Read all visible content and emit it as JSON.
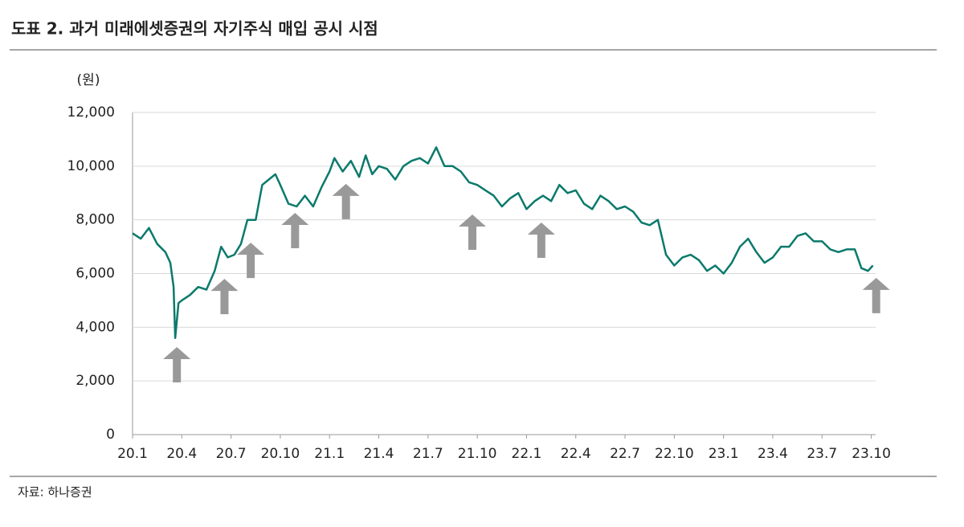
{
  "chart_data": {
    "type": "line",
    "title": "도표 2. 과거 미래에셋증권의 자기주식 매입 공시 시점",
    "y_unit": "(원)",
    "source": "자료: 하나증권",
    "color": "#0b7a6b",
    "arrow_color": "#999999",
    "grid": true,
    "x": [
      0,
      0.5,
      1,
      1.5,
      2,
      2.3,
      2.5,
      2.6,
      2.8,
      3,
      3.5,
      4,
      4.5,
      5,
      5.4,
      5.8,
      6.2,
      6.6,
      7,
      7.5,
      7.9,
      8.3,
      8.7,
      9,
      9.5,
      10,
      10.5,
      11,
      11.5,
      12,
      12.3,
      12.8,
      13.3,
      13.8,
      14.2,
      14.6,
      15,
      15.5,
      16,
      16.5,
      17,
      17.5,
      18,
      18.5,
      19,
      19.5,
      20,
      20.5,
      21,
      21.5,
      22,
      22.5,
      23,
      23.5,
      24,
      24.5,
      25,
      25.5,
      26,
      26.5,
      27,
      27.5,
      28,
      28.5,
      29,
      29.5,
      30,
      30.5,
      31,
      31.5,
      32,
      32.5,
      33,
      33.5,
      34,
      34.5,
      35,
      35.5,
      36,
      36.5,
      37,
      37.5,
      38,
      38.5,
      39,
      39.5,
      40,
      40.5,
      41,
      41.5,
      42,
      42.5,
      43,
      43.5,
      44,
      44.4,
      44.8,
      45.1
    ],
    "values": [
      7500,
      7300,
      7700,
      7100,
      6800,
      6400,
      5500,
      3600,
      4900,
      5000,
      5200,
      5500,
      5400,
      6100,
      7000,
      6600,
      6700,
      7100,
      8000,
      8000,
      9300,
      9500,
      9700,
      9300,
      8600,
      8500,
      8900,
      8500,
      9200,
      9800,
      10300,
      9800,
      10200,
      9600,
      10400,
      9700,
      10000,
      9900,
      9500,
      10000,
      10200,
      10300,
      10100,
      10700,
      10000,
      10000,
      9800,
      9400,
      9300,
      9100,
      8900,
      8500,
      8800,
      9000,
      8400,
      8700,
      8900,
      8700,
      9300,
      9000,
      9100,
      8600,
      8400,
      8900,
      8700,
      8400,
      8500,
      8300,
      7900,
      7800,
      8000,
      6700,
      6300,
      6600,
      6700,
      6500,
      6100,
      6300,
      6000,
      6400,
      7000,
      7300,
      6800,
      6400,
      6600,
      7000,
      7000,
      7400,
      7500,
      7200,
      7200,
      6900,
      6800,
      6900,
      6900,
      6200,
      6100,
      6300
    ],
    "arrows": {
      "x": [
        2.7,
        5.6,
        7.2,
        9.9,
        13.0,
        20.7,
        24.9,
        45.3
      ],
      "y": [
        3260,
        5800,
        7150,
        8260,
        9340,
        8200,
        7900,
        5840
      ]
    },
    "xlim": [
      0,
      46
    ],
    "xticks": [
      {
        "value": 0,
        "label": "20.1"
      },
      {
        "value": 3,
        "label": "20.4"
      },
      {
        "value": 6,
        "label": "20.7"
      },
      {
        "value": 9,
        "label": "20.10"
      },
      {
        "value": 12,
        "label": "21.1"
      },
      {
        "value": 15,
        "label": "21.4"
      },
      {
        "value": 18,
        "label": "21.7"
      },
      {
        "value": 21,
        "label": "21.10"
      },
      {
        "value": 24,
        "label": "22.1"
      },
      {
        "value": 27,
        "label": "22.4"
      },
      {
        "value": 30,
        "label": "22.7"
      },
      {
        "value": 33,
        "label": "22.10"
      },
      {
        "value": 36,
        "label": "23.1"
      },
      {
        "value": 39,
        "label": "23.4"
      },
      {
        "value": 42,
        "label": "23.7"
      },
      {
        "value": 45,
        "label": "23.10"
      }
    ],
    "ylim": [
      0,
      12000
    ],
    "yticks": [
      0,
      {
        "value": 2000,
        "label": "2,000"
      },
      {
        "value": 4000,
        "label": "4,000"
      },
      {
        "value": 6000,
        "label": "6,000"
      },
      {
        "value": 8000,
        "label": "8,000"
      },
      {
        "value": 10000,
        "label": "10,000"
      },
      {
        "value": 12000,
        "label": "12,000"
      }
    ]
  }
}
